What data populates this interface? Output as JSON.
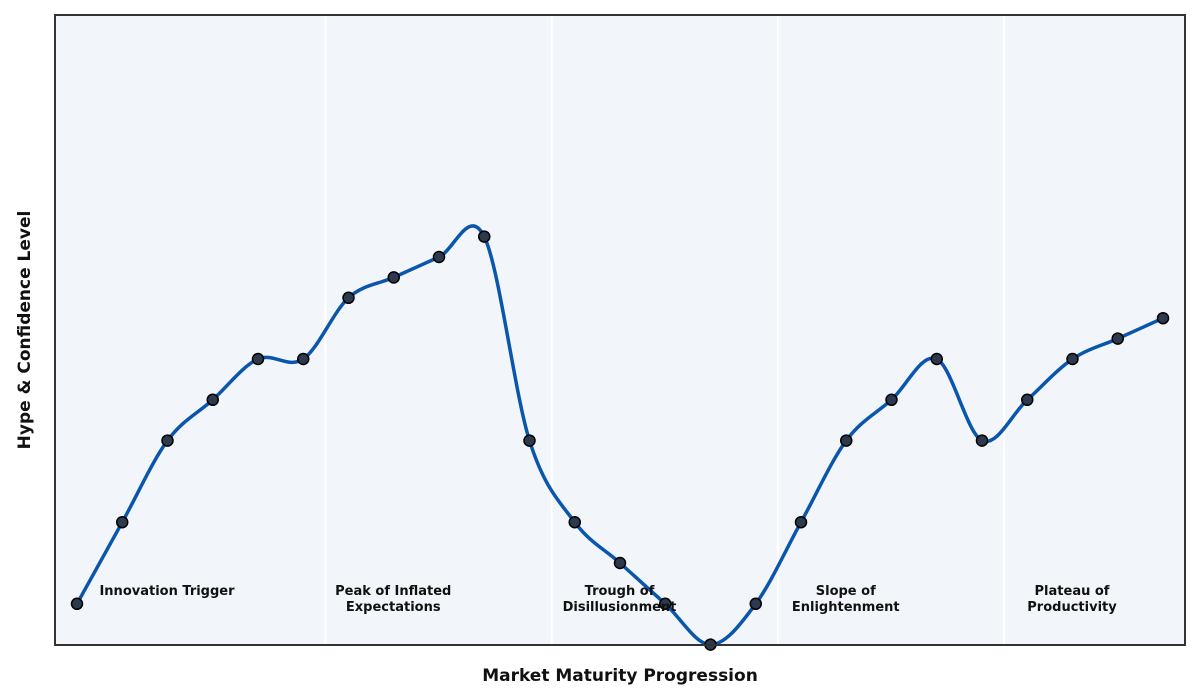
{
  "chart_data": {
    "type": "line",
    "xlabel": "Market Maturity Progression",
    "ylabel": "Hype & Confidence Level",
    "ylim": [
      0,
      15.5
    ],
    "grid": false,
    "ticks_shown": false,
    "phases": [
      {
        "lines": [
          "Innovation Trigger"
        ]
      },
      {
        "lines": [
          "Peak of Inflated",
          "Expectations"
        ]
      },
      {
        "lines": [
          "Trough of",
          "Disillusionment"
        ]
      },
      {
        "lines": [
          "Slope of",
          "Enlightenment"
        ]
      },
      {
        "lines": [
          "Plateau of",
          "Productivity"
        ]
      }
    ],
    "series": [
      {
        "x": [
          0,
          1,
          2,
          3,
          4,
          5,
          6,
          7,
          8,
          9,
          10,
          11,
          12,
          13,
          14,
          15,
          16,
          17,
          18,
          19,
          20,
          21,
          22,
          23,
          24
        ],
        "values": [
          4,
          6,
          8,
          9,
          10,
          10,
          11.5,
          12,
          12.5,
          13,
          8,
          6,
          5,
          4,
          3,
          4,
          6,
          8,
          9,
          10,
          8,
          9,
          10,
          10.5,
          11
        ]
      }
    ],
    "colors": {
      "line": "#0a56ac",
      "marker_fill": "#2d3a4e",
      "marker_edge": "#000000",
      "plot_background": "#f2f6fa",
      "phase_divider": "#ffffff",
      "frame": "#333333"
    }
  }
}
